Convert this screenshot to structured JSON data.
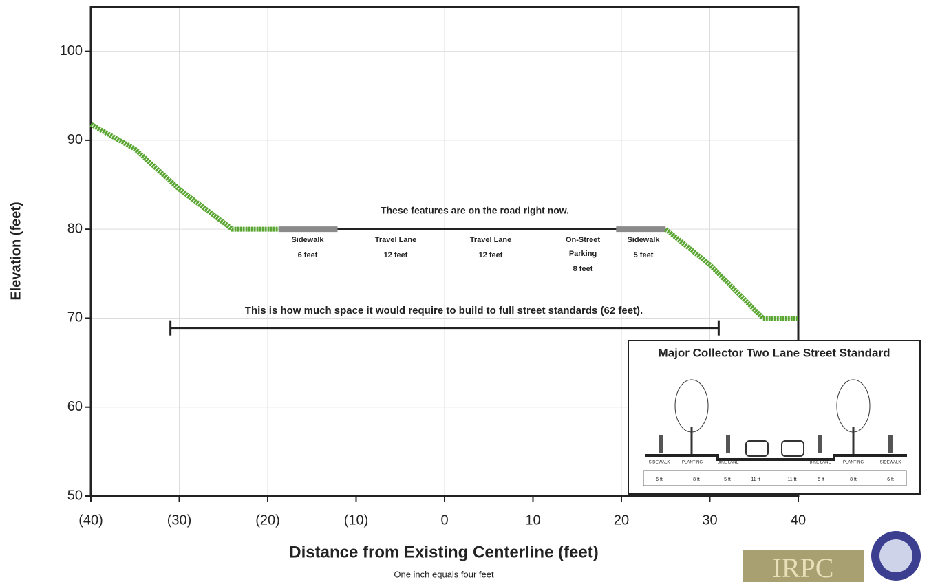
{
  "chart_data": {
    "type": "line",
    "x_label": "Distance from Existing Centerline (feet)",
    "y_label": "Elevation (feet)",
    "note": "One inch equals four feet",
    "xlim": [
      -40,
      40
    ],
    "ylim": [
      50,
      105
    ],
    "xticks": [
      {
        "value": -40,
        "label": "(40)"
      },
      {
        "value": -30,
        "label": "(30)"
      },
      {
        "value": -20,
        "label": "(20)"
      },
      {
        "value": -10,
        "label": "(10)"
      },
      0,
      10,
      20,
      30,
      40
    ],
    "yticks": [
      50,
      60,
      70,
      80,
      90,
      100
    ],
    "grid": true,
    "series": [
      {
        "color": "#5aa632",
        "x": [
          -40,
          -35,
          -30,
          -24,
          -18.7
        ],
        "values": [
          91.8,
          89,
          84.5,
          80,
          80
        ]
      },
      {
        "color": "#222222",
        "x": [
          -18.7,
          25
        ],
        "values": [
          80,
          80
        ]
      },
      {
        "color": "#8a8a8a",
        "x": [
          -18.7,
          -12.1
        ],
        "values": [
          80,
          80
        ]
      },
      {
        "color": "#8a8a8a",
        "x": [
          19.4,
          25
        ],
        "values": [
          80,
          80
        ]
      },
      {
        "color": "#5aa632",
        "x": [
          25,
          30,
          36,
          40
        ],
        "values": [
          80,
          76,
          70,
          70
        ]
      }
    ],
    "road_caption": "These features are on the road right now.",
    "features": [
      {
        "lines": [
          "Sidewalk",
          "6 feet"
        ]
      },
      {
        "lines": [
          "Travel Lane",
          "12 feet"
        ]
      },
      {
        "lines": [
          "Travel Lane",
          "12 feet"
        ]
      },
      {
        "lines": [
          "On-Street",
          "Parking",
          "8 feet"
        ]
      },
      {
        "lines": [
          "Sidewalk",
          "5 feet"
        ]
      }
    ],
    "span_caption": "This is how much space it would require to build to full street standards (62 feet).",
    "span": [
      -31,
      31
    ],
    "span_y": 68.9,
    "inset": {
      "title": "Major Collector Two Lane Street Standard",
      "zones": [
        "SIDEWALK",
        "PLANTING",
        "BIKE LANE",
        "BIKE LANE",
        "PLANTING",
        "SIDEWALK"
      ],
      "dims": [
        "6 ft",
        "8 ft",
        "5 ft",
        "11 ft",
        "11 ft",
        "5 ft",
        "8 ft",
        "6 ft"
      ]
    },
    "logo": "IRPC"
  }
}
